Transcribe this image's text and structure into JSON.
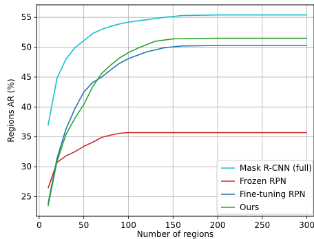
{
  "chart_data": {
    "type": "line",
    "xlabel": "Number of regions",
    "ylabel": "Regions AR (%)",
    "xlim": [
      -3,
      308
    ],
    "ylim": [
      21.7,
      57.1
    ],
    "xticks": [
      0,
      50,
      100,
      150,
      200,
      250,
      300
    ],
    "yticks": [
      25,
      30,
      35,
      40,
      45,
      50,
      55
    ],
    "grid": true,
    "legend_position": "lower-right",
    "series": [
      {
        "name": "Mask R-CNN (full)",
        "color": "#17becf",
        "x": [
          10,
          20,
          30,
          40,
          50,
          60,
          70,
          80,
          90,
          100,
          120,
          140,
          160,
          200,
          250,
          300
        ],
        "y": [
          36.9,
          44.8,
          48.0,
          49.9,
          51.1,
          52.3,
          53.0,
          53.5,
          53.9,
          54.2,
          54.6,
          55.0,
          55.3,
          55.4,
          55.4,
          55.4
        ]
      },
      {
        "name": "Frozen RPN",
        "color": "#d62728",
        "x": [
          10,
          20,
          30,
          40,
          50,
          60,
          70,
          80,
          90,
          100,
          120,
          150,
          200,
          250,
          300
        ],
        "y": [
          26.4,
          30.7,
          31.8,
          32.5,
          33.4,
          34.1,
          34.9,
          35.3,
          35.6,
          35.7,
          35.7,
          35.7,
          35.7,
          35.7,
          35.7
        ]
      },
      {
        "name": "Fine-tuning RPN",
        "color": "#1f77b4",
        "x": [
          10,
          20,
          30,
          40,
          50,
          60,
          70,
          80,
          90,
          100,
          120,
          140,
          160,
          200,
          250,
          300
        ],
        "y": [
          23.8,
          31.4,
          36.3,
          39.7,
          42.5,
          44.1,
          45.0,
          46.2,
          47.3,
          48.1,
          49.2,
          49.9,
          50.2,
          50.3,
          50.3,
          50.3
        ]
      },
      {
        "name": "Ours",
        "color": "#2ca02c",
        "x": [
          10,
          20,
          30,
          40,
          50,
          60,
          70,
          80,
          90,
          100,
          110,
          130,
          150,
          200,
          250,
          300
        ],
        "y": [
          23.4,
          30.9,
          35.4,
          38.1,
          40.4,
          43.4,
          45.6,
          47.0,
          48.2,
          49.1,
          49.8,
          51.0,
          51.4,
          51.5,
          51.5,
          51.5
        ]
      }
    ]
  }
}
